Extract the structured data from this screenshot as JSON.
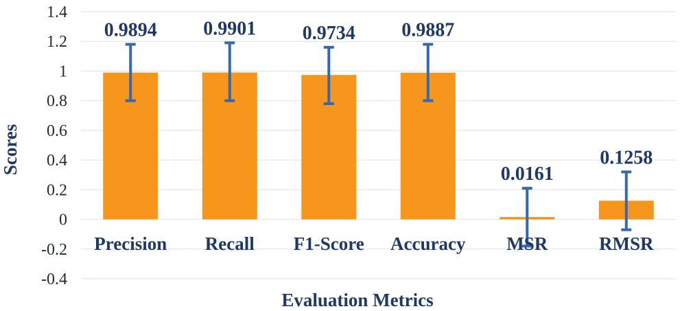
{
  "chart_data": {
    "type": "bar",
    "categories": [
      "Precision",
      "Recall",
      "F1-Score",
      "Accuracy",
      "MSR",
      "RMSR"
    ],
    "values": [
      0.9894,
      0.9901,
      0.9734,
      0.9887,
      0.0161,
      0.1258
    ],
    "data_labels": [
      "0.9894",
      "0.9901",
      "0.9734",
      "0.9887",
      "0.0161",
      "0.1258"
    ],
    "error_bars": {
      "upper": [
        1.18,
        1.19,
        1.16,
        1.18,
        0.21,
        0.32
      ],
      "lower": [
        0.8,
        0.8,
        0.78,
        0.8,
        -0.18,
        -0.07
      ]
    },
    "title": "",
    "xlabel": "Evaluation Metrics",
    "ylabel": "Scores",
    "ylim": [
      -0.4,
      1.4
    ],
    "yticks": [
      "1.4",
      "1.2",
      "1",
      "0.8",
      "0.6",
      "0.4",
      "0.2",
      "0",
      "-0.2",
      "-0.4"
    ],
    "ytick_values": [
      1.4,
      1.2,
      1,
      0.8,
      0.6,
      0.4,
      0.2,
      0,
      -0.2,
      -0.4
    ],
    "grid": true,
    "legend": "none",
    "colors": {
      "bar": "#f7961d",
      "error_bar": "#3568b2",
      "label": "#1f3864",
      "grid": "#d9e2ee"
    }
  }
}
